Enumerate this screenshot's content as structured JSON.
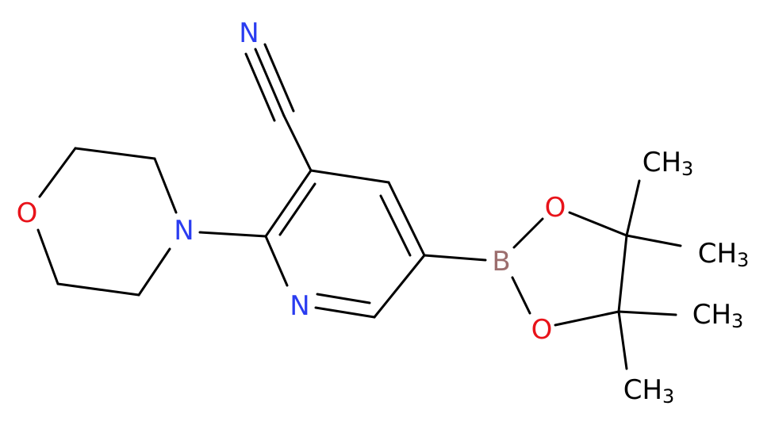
{
  "atoms": [
    {
      "label": "N"
    },
    {
      "label": "O"
    },
    {
      "label": "N"
    },
    {
      "label": "N"
    },
    {
      "label": "B"
    },
    {
      "label": "O"
    },
    {
      "label": "O"
    }
  ],
  "methyls": [
    {
      "main": "CH",
      "sub": "3"
    },
    {
      "main": "CH",
      "sub": "3"
    },
    {
      "main": "CH",
      "sub": "3"
    },
    {
      "main": "CH",
      "sub": "3"
    }
  ]
}
